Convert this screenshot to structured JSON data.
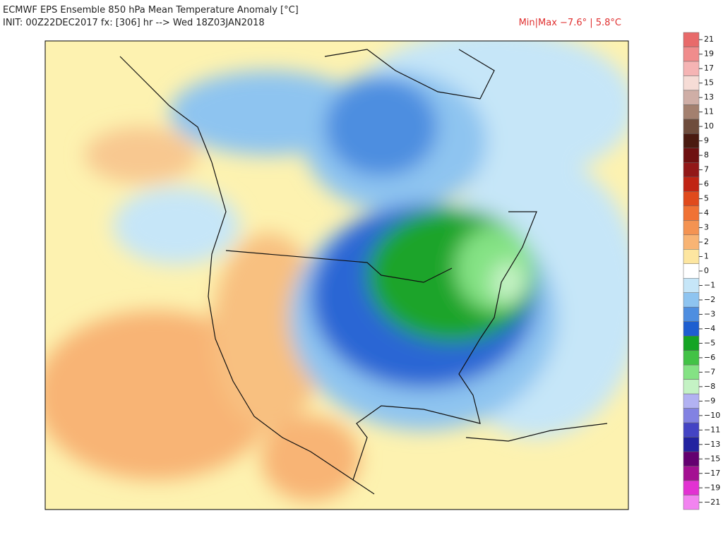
{
  "header": {
    "title": "ECMWF EPS Ensemble 850 hPa Mean Temperature Anomaly [°C]",
    "init": "INIT: 00Z22DEC2017 fx: [306] hr --> Wed 18Z03JAN2018",
    "minmax": "Min|Max −7.6° | 5.8°C"
  },
  "colorbar": {
    "levels": [
      {
        "label": "21",
        "color": "#e86a6a"
      },
      {
        "label": "19",
        "color": "#f08c8c"
      },
      {
        "label": "17",
        "color": "#f5b4b4"
      },
      {
        "label": "15",
        "color": "#f6dcd6"
      },
      {
        "label": "13",
        "color": "#cfae a6"
      },
      {
        "label": "11",
        "color": "#a3806f"
      },
      {
        "label": "10",
        "color": "#6e4c3c"
      },
      {
        "label": "9",
        "color": "#4a1a10"
      },
      {
        "label": "8",
        "color": "#6e1010"
      },
      {
        "label": "7",
        "color": "#921818"
      },
      {
        "label": "6",
        "color": "#c02414"
      },
      {
        "label": "5",
        "color": "#e04a1c"
      },
      {
        "label": "4",
        "color": "#f07234"
      },
      {
        "label": "3",
        "color": "#f49352"
      },
      {
        "label": "2",
        "color": "#f8b474"
      },
      {
        "label": "1",
        "color": "#fde6a0"
      },
      {
        "label": "0",
        "color": "#ffffff"
      },
      {
        "label": "−1",
        "color": "#c6e6f8"
      },
      {
        "label": "−2",
        "color": "#8ec4f0"
      },
      {
        "label": "−3",
        "color": "#4e8ee0"
      },
      {
        "label": "−4",
        "color": "#1e5ed0"
      },
      {
        "label": "−5",
        "color": "#14a424"
      },
      {
        "label": "−6",
        "color": "#42c246"
      },
      {
        "label": "−7",
        "color": "#84e284"
      },
      {
        "label": "−8",
        "color": "#c4f2c4"
      },
      {
        "label": "−9",
        "color": "#b2b2f2"
      },
      {
        "label": "−10",
        "color": "#8282e2"
      },
      {
        "label": "−11",
        "color": "#4444c4"
      },
      {
        "label": "−13",
        "color": "#2222a0"
      },
      {
        "label": "−15",
        "color": "#640070"
      },
      {
        "label": "−17",
        "color": "#a41092"
      },
      {
        "label": "−19",
        "color": "#e232d2"
      },
      {
        "label": "−21",
        "color": "#f284f0"
      }
    ]
  }
}
